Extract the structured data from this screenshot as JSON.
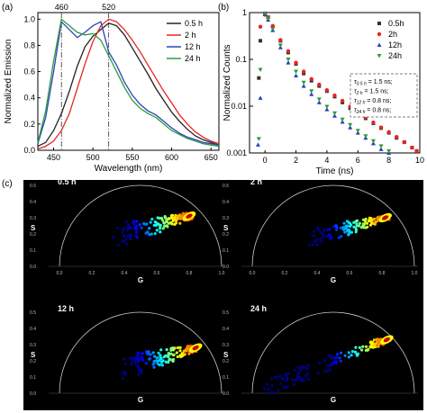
{
  "chart_data": [
    {
      "panel": "(a)",
      "type": "line",
      "xlabel": "Wavelength (nm)",
      "ylabel": "Normalized Emission",
      "xlim": [
        430,
        660
      ],
      "ylim": [
        0.0,
        1.05
      ],
      "xticks": [
        450,
        500,
        550,
        600,
        650
      ],
      "yticks": [
        0.0,
        0.2,
        0.4,
        0.6,
        0.8,
        1.0
      ],
      "annotations": [
        {
          "text": "460",
          "x": 460
        },
        {
          "text": "520",
          "x": 520
        }
      ],
      "legend": "top-right",
      "series": [
        {
          "name": "0.5 h",
          "color": "#222222",
          "x": [
            430,
            440,
            450,
            460,
            470,
            480,
            490,
            500,
            510,
            520,
            530,
            540,
            550,
            560,
            570,
            580,
            590,
            600,
            610,
            620,
            630,
            640,
            650,
            660
          ],
          "y": [
            0.03,
            0.06,
            0.15,
            0.28,
            0.45,
            0.64,
            0.79,
            0.87,
            0.92,
            0.97,
            0.95,
            0.88,
            0.78,
            0.68,
            0.58,
            0.47,
            0.38,
            0.29,
            0.22,
            0.16,
            0.11,
            0.08,
            0.06,
            0.04
          ]
        },
        {
          "name": "2 h",
          "color": "#e8261f",
          "x": [
            430,
            440,
            450,
            460,
            470,
            480,
            490,
            500,
            510,
            520,
            530,
            540,
            550,
            560,
            570,
            580,
            590,
            600,
            610,
            620,
            630,
            640,
            650,
            660
          ],
          "y": [
            0.01,
            0.03,
            0.07,
            0.15,
            0.28,
            0.47,
            0.66,
            0.83,
            0.95,
            1.0,
            0.98,
            0.92,
            0.84,
            0.75,
            0.65,
            0.55,
            0.45,
            0.36,
            0.27,
            0.2,
            0.14,
            0.1,
            0.07,
            0.05
          ]
        },
        {
          "name": "12 h",
          "color": "#2a44b8",
          "x": [
            430,
            440,
            450,
            460,
            470,
            480,
            490,
            500,
            510,
            520,
            530,
            540,
            550,
            560,
            570,
            580,
            590,
            600,
            610,
            620,
            630,
            640,
            650,
            660
          ],
          "y": [
            0.05,
            0.25,
            0.6,
            0.98,
            0.92,
            0.86,
            0.9,
            0.95,
            0.98,
            0.75,
            0.65,
            0.52,
            0.42,
            0.35,
            0.3,
            0.27,
            0.22,
            0.17,
            0.13,
            0.1,
            0.08,
            0.06,
            0.05,
            0.04
          ]
        },
        {
          "name": "24 h",
          "color": "#2e9a3e",
          "x": [
            430,
            440,
            450,
            460,
            470,
            480,
            490,
            500,
            510,
            520,
            530,
            540,
            550,
            560,
            570,
            580,
            590,
            600,
            610,
            620,
            630,
            640,
            650,
            660
          ],
          "y": [
            0.06,
            0.3,
            0.68,
            1.0,
            0.95,
            0.9,
            0.88,
            0.89,
            0.84,
            0.72,
            0.6,
            0.48,
            0.38,
            0.32,
            0.28,
            0.25,
            0.2,
            0.15,
            0.12,
            0.09,
            0.07,
            0.05,
            0.04,
            0.03
          ]
        }
      ]
    },
    {
      "panel": "(b)",
      "type": "scatter",
      "scale_y": "log",
      "xlabel": "Time (ns)",
      "ylabel": "Normalized Counts",
      "xlim": [
        -1,
        10
      ],
      "ylim": [
        0.001,
        1
      ],
      "xticks": [
        0,
        2,
        4,
        6,
        8,
        10
      ],
      "yticks": [
        0.001,
        0.01,
        0.1,
        1
      ],
      "yticklabels": [
        "0.001",
        "0.01",
        "0.1",
        "1"
      ],
      "legend": "top-right",
      "inset_text": [
        {
          "label": "τ",
          "sub": "0.5 h",
          "value": "= 1.5 ns;"
        },
        {
          "label": "τ",
          "sub": "2 h",
          "value": "= 1.5 ns;"
        },
        {
          "label": "τ",
          "sub": "12 h",
          "value": "= 0.8 ns;"
        },
        {
          "label": "τ",
          "sub": "24 h",
          "value": "= 0.8 ns;"
        }
      ],
      "series": [
        {
          "name": "0.5h",
          "color": "#333333",
          "marker": "square",
          "x": [
            -0.4,
            -0.3,
            0.0,
            0.2,
            0.5,
            1.0,
            1.5,
            2.0,
            2.5,
            3.0,
            3.5,
            4.0,
            4.5,
            5.0,
            5.5,
            6.0,
            6.5,
            7.0,
            7.5,
            8.0,
            8.5,
            9.0,
            9.5,
            9.8
          ],
          "y": [
            0.04,
            0.25,
            0.95,
            0.8,
            0.5,
            0.25,
            0.14,
            0.08,
            0.05,
            0.035,
            0.027,
            0.021,
            0.016,
            0.012,
            0.009,
            0.007,
            0.0055,
            0.0043,
            0.0034,
            0.0027,
            0.0021,
            0.0017,
            0.0013,
            0.0011
          ]
        },
        {
          "name": "2h",
          "color": "#e8261f",
          "marker": "circle",
          "x": [
            -0.3,
            0.0,
            0.2,
            0.5,
            1.0,
            1.5,
            2.0,
            2.5,
            3.0,
            3.5,
            4.0,
            4.5,
            5.0,
            5.5,
            6.0,
            6.5,
            7.0,
            7.5,
            8.0,
            8.5,
            9.0,
            9.5,
            9.8
          ],
          "y": [
            0.5,
            0.9,
            0.8,
            0.52,
            0.26,
            0.15,
            0.085,
            0.055,
            0.038,
            0.029,
            0.022,
            0.017,
            0.013,
            0.0098,
            0.0075,
            0.0058,
            0.0045,
            0.0035,
            0.0028,
            0.0022,
            0.0017,
            0.0013,
            0.0011
          ]
        },
        {
          "name": "12h",
          "color": "#2a44b8",
          "marker": "triangle-up",
          "x": [
            -0.45,
            -0.3,
            0.0,
            0.2,
            0.5,
            1.0,
            1.5,
            2.0,
            2.5,
            3.0,
            3.5,
            4.0,
            4.5,
            5.0,
            5.5,
            6.0,
            6.5,
            7.0,
            7.5,
            8.0
          ],
          "y": [
            0.0015,
            0.015,
            0.92,
            0.7,
            0.42,
            0.18,
            0.085,
            0.045,
            0.027,
            0.018,
            0.012,
            0.0085,
            0.0062,
            0.0046,
            0.0035,
            0.0027,
            0.0021,
            0.0016,
            0.0012,
            0.001
          ]
        },
        {
          "name": "24h",
          "color": "#2e9a3e",
          "marker": "triangle-down",
          "x": [
            -0.4,
            -0.3,
            0.0,
            0.2,
            0.5,
            1.0,
            1.5,
            2.0,
            2.5,
            3.0,
            3.5,
            4.0,
            4.5,
            5.0,
            5.5,
            6.0,
            6.5,
            7.0,
            7.5,
            8.0
          ],
          "y": [
            0.002,
            0.06,
            0.97,
            0.75,
            0.45,
            0.2,
            0.1,
            0.055,
            0.032,
            0.021,
            0.014,
            0.0098,
            0.0071,
            0.0052,
            0.004,
            0.003,
            0.0023,
            0.0018,
            0.0014,
            0.0011
          ]
        }
      ]
    },
    {
      "panel": "(c)",
      "type": "heatmap",
      "subplots": [
        {
          "label": "0.5 h",
          "xlabel": "G",
          "ylabel": "S",
          "xticks": [
            "0.0",
            "0.2",
            "0.4",
            "0.6",
            "0.8",
            "1.0"
          ],
          "yticks": [
            "0.0",
            "0.1",
            "0.2",
            "0.3",
            "0.4",
            "0.5"
          ],
          "peak_G": 0.8,
          "peak_S": 0.31,
          "colormap": "jet"
        },
        {
          "label": "2 h",
          "xlabel": "G",
          "ylabel": "S",
          "xticks": [
            "0.0",
            "0.2",
            "0.4",
            "0.6",
            "0.8",
            "1.0"
          ],
          "yticks": [
            "0.0",
            "0.1",
            "0.2",
            "0.3",
            "0.4",
            "0.5"
          ],
          "peak_G": 0.82,
          "peak_S": 0.3,
          "colormap": "jet"
        },
        {
          "label": "12 h",
          "xlabel": "G",
          "ylabel": "S",
          "xticks": [],
          "yticks": [
            "0.0",
            "0.1",
            "0.2",
            "0.3",
            "0.4",
            "0.5"
          ],
          "peak_G": 0.84,
          "peak_S": 0.28,
          "colormap": "jet"
        },
        {
          "label": "24 h",
          "xlabel": "G",
          "ylabel": "S",
          "xticks": [],
          "yticks": [
            "0.0",
            "0.1",
            "0.2",
            "0.3",
            "0.4",
            "0.5"
          ],
          "peak_G": 0.83,
          "peak_S": 0.33,
          "colormap": "jet"
        }
      ]
    }
  ],
  "labels": {
    "panel_a": "(a)",
    "panel_b": "(b)",
    "panel_c": "(c)"
  }
}
